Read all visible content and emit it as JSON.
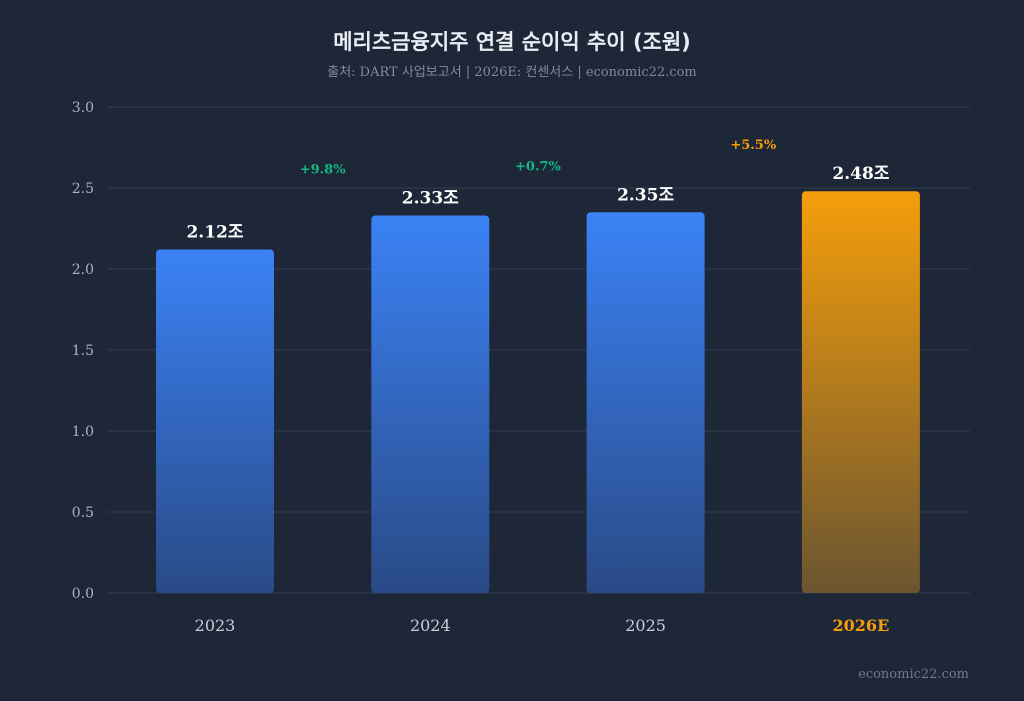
{
  "chart_data": {
    "type": "bar",
    "title": "메리츠금융지주 연결 순이익 추이 (조원)",
    "subtitle": "출처: DART 사업보고서 | 2026E: 컨센서스 | economic22.com",
    "categories": [
      "2023",
      "2024",
      "2025",
      "2026E"
    ],
    "values": [
      2.12,
      2.33,
      2.35,
      2.48
    ],
    "value_labels": [
      "2.12조",
      "2.33조",
      "2.35조",
      "2.48조"
    ],
    "growth_labels": [
      "+9.8%",
      "+0.7%",
      "+5.5%"
    ],
    "ylim": [
      0,
      3.0
    ],
    "yticks": [
      "0.0",
      "0.5",
      "1.0",
      "1.5",
      "2.0",
      "2.5",
      "3.0"
    ],
    "grid": true,
    "highlight_category": "2026E",
    "colors": {
      "actual_top": "#3b82f6",
      "actual_bottom": "#2a4a86",
      "estimate_top": "#f59e0b",
      "estimate_bottom": "#6b5530",
      "growth_actual": "#10b981",
      "growth_estimate": "#f59e0b",
      "background": "#1e2738"
    }
  },
  "watermark": "economic22.com"
}
